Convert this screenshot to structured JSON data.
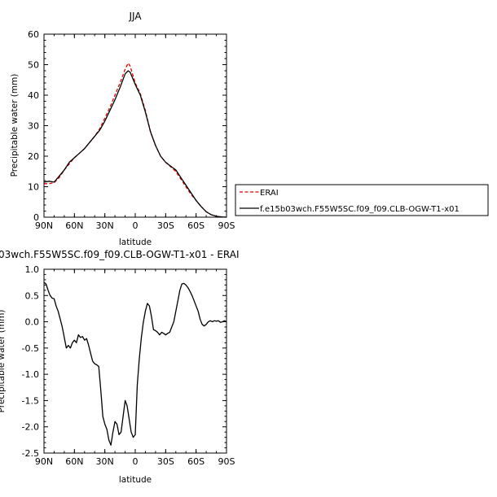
{
  "chart_data": [
    {
      "type": "line",
      "title": "JJA",
      "xlabel": "latitude",
      "ylabel": "Precipitable water (mm)",
      "x_ticks": [
        "90N",
        "60N",
        "30N",
        "0",
        "30S",
        "60S",
        "90S"
      ],
      "y_ticks": [
        "0",
        "10",
        "20",
        "30",
        "40",
        "50",
        "60"
      ],
      "xlim": [
        90,
        -90
      ],
      "ylim": [
        0,
        60
      ],
      "legend_position": "right",
      "series": [
        {
          "name": "ERAI",
          "color": "#e00000",
          "style": "dashed",
          "x": [
            90,
            85,
            80,
            75,
            70,
            65,
            60,
            55,
            50,
            45,
            40,
            35,
            30,
            25,
            20,
            15,
            10,
            7,
            5,
            0,
            -5,
            -10,
            -15,
            -20,
            -25,
            -30,
            -35,
            -40,
            -45,
            -50,
            -55,
            -60,
            -65,
            -70,
            -75,
            -80,
            -85,
            -90
          ],
          "y": [
            11,
            11,
            11.3,
            13,
            15.5,
            17.5,
            19.5,
            21,
            22.5,
            24.5,
            26.5,
            29,
            32.5,
            36,
            40,
            44,
            48.5,
            50.5,
            49.5,
            44,
            40.5,
            35,
            28,
            23.5,
            20,
            18,
            16.5,
            15,
            12.5,
            10,
            7.5,
            5.5,
            3.5,
            1.8,
            0.8,
            0.3,
            0.1,
            0
          ]
        },
        {
          "name": "f.e15b03wch.F55W5SC.f09_f09.CLB-OGW-T1-x01",
          "color": "#000000",
          "style": "solid",
          "x": [
            90,
            85,
            80,
            75,
            70,
            65,
            60,
            55,
            50,
            45,
            40,
            35,
            30,
            25,
            20,
            15,
            10,
            7,
            5,
            0,
            -5,
            -10,
            -15,
            -20,
            -25,
            -30,
            -35,
            -40,
            -45,
            -50,
            -55,
            -60,
            -65,
            -70,
            -75,
            -80,
            -85,
            -90
          ],
          "y": [
            11.5,
            11.8,
            11.5,
            13.5,
            15.5,
            18,
            19.5,
            21,
            22.5,
            24.5,
            26.5,
            28.5,
            31.5,
            35,
            38.5,
            42.5,
            47,
            48,
            47.5,
            43.5,
            40,
            34.5,
            28,
            23.5,
            20,
            18,
            16.7,
            15.5,
            13,
            10.5,
            8,
            5.5,
            3.5,
            1.8,
            0.8,
            0.3,
            0.1,
            0
          ]
        }
      ]
    },
    {
      "type": "line",
      "title": "03wch.F55W5SC.f09_f09.CLB-OGW-T1-x01 - ERAI",
      "xlabel": "latitude",
      "ylabel": "Precipitable water (mm)",
      "x_ticks": [
        "90N",
        "60N",
        "30N",
        "0",
        "30S",
        "60S",
        "90S"
      ],
      "y_ticks": [
        "1.0",
        "0.5",
        "0.0",
        "-0.5",
        "-1.0",
        "-1.5",
        "-2.0",
        "-2.5"
      ],
      "xlim": [
        90,
        -90
      ],
      "ylim": [
        -2.5,
        1.0
      ],
      "series": [
        {
          "name": "",
          "color": "#000000",
          "style": "solid",
          "x": [
            90,
            88,
            86,
            84,
            82,
            80,
            78,
            76,
            74,
            72,
            70,
            68,
            66,
            64,
            62,
            60,
            58,
            56,
            54,
            52,
            50,
            48,
            46,
            44,
            42,
            40,
            38,
            36,
            34,
            32,
            30,
            28,
            26,
            24,
            22,
            20,
            18,
            16,
            14,
            12,
            10,
            8,
            6,
            4,
            2,
            0,
            -2,
            -4,
            -6,
            -8,
            -10,
            -12,
            -14,
            -16,
            -18,
            -20,
            -22,
            -24,
            -26,
            -28,
            -30,
            -32,
            -34,
            -36,
            -38,
            -40,
            -42,
            -44,
            -46,
            -48,
            -50,
            -52,
            -54,
            -56,
            -58,
            -60,
            -62,
            -64,
            -66,
            -68,
            -70,
            -72,
            -74,
            -76,
            -78,
            -80,
            -82,
            -84,
            -86,
            -88,
            -90
          ],
          "y": [
            0.75,
            0.72,
            0.6,
            0.5,
            0.45,
            0.44,
            0.3,
            0.2,
            0.05,
            -0.1,
            -0.3,
            -0.5,
            -0.45,
            -0.5,
            -0.4,
            -0.35,
            -0.4,
            -0.25,
            -0.3,
            -0.28,
            -0.35,
            -0.32,
            -0.45,
            -0.6,
            -0.75,
            -0.8,
            -0.82,
            -0.85,
            -1.3,
            -1.8,
            -1.95,
            -2.05,
            -2.25,
            -2.35,
            -2.1,
            -1.9,
            -1.95,
            -2.15,
            -2.1,
            -1.8,
            -1.5,
            -1.6,
            -1.85,
            -2.1,
            -2.2,
            -2.15,
            -1.2,
            -0.7,
            -0.3,
            0.0,
            0.2,
            0.35,
            0.3,
            0.1,
            -0.15,
            -0.17,
            -0.2,
            -0.25,
            -0.2,
            -0.22,
            -0.25,
            -0.22,
            -0.2,
            -0.1,
            0.0,
            0.2,
            0.4,
            0.6,
            0.72,
            0.73,
            0.7,
            0.65,
            0.58,
            0.5,
            0.4,
            0.3,
            0.2,
            0.05,
            -0.05,
            -0.08,
            -0.05,
            0.0,
            0.02,
            0.0,
            0.02,
            0.01,
            0.02,
            -0.01,
            0.0,
            0.02,
            0.0
          ]
        }
      ]
    }
  ]
}
